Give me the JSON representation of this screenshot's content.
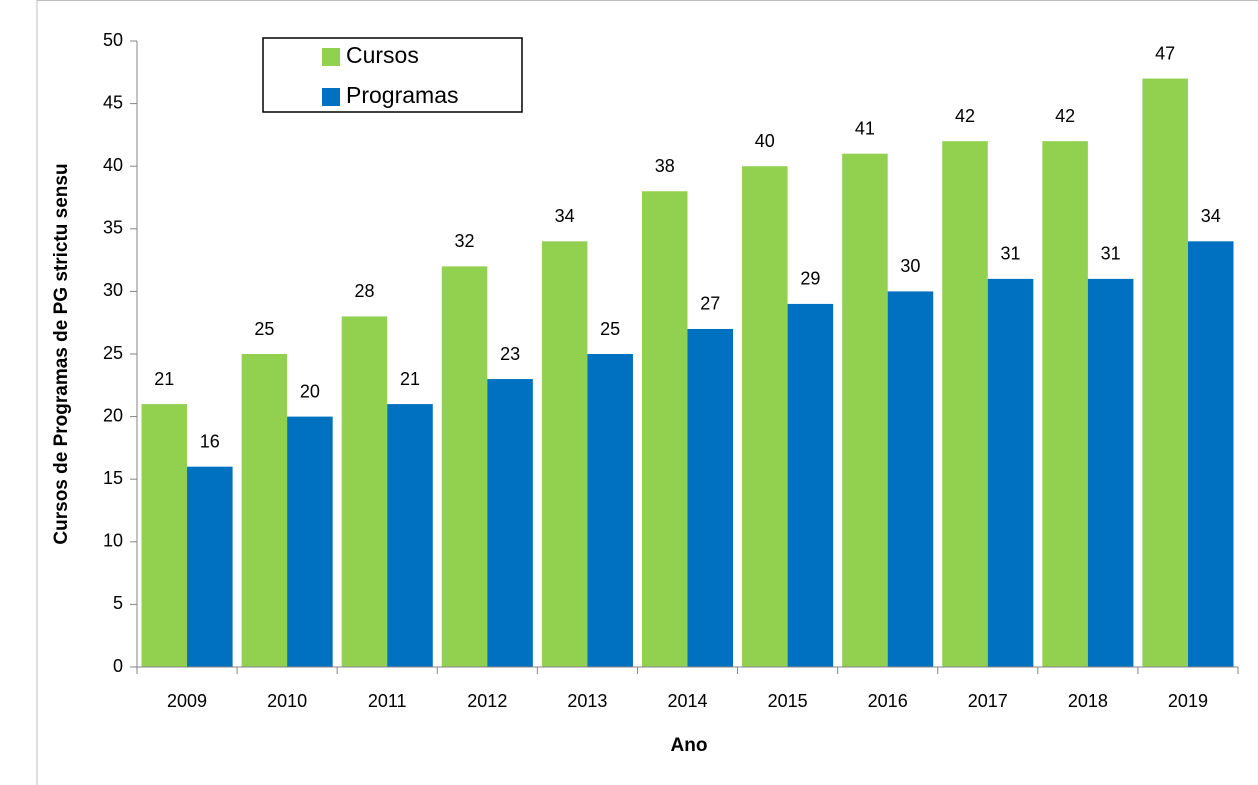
{
  "chart_data": {
    "type": "bar",
    "y_label": "Cursos de Programas de PG strictu sensu",
    "x_label": "Ano",
    "categories": [
      "2009",
      "2010",
      "2011",
      "2012",
      "2013",
      "2014",
      "2015",
      "2016",
      "2017",
      "2018",
      "2019"
    ],
    "series": [
      {
        "name": "Cursos",
        "color": "#92d050",
        "values": [
          21,
          25,
          28,
          32,
          34,
          38,
          40,
          41,
          42,
          42,
          47
        ]
      },
      {
        "name": "Programas",
        "color": "#0070c0",
        "values": [
          16,
          20,
          21,
          23,
          25,
          27,
          29,
          30,
          31,
          31,
          34
        ]
      }
    ],
    "ylim": [
      0,
      50
    ],
    "yticks": [
      0,
      5,
      10,
      15,
      20,
      25,
      30,
      35,
      40,
      45,
      50
    ],
    "grid": false,
    "legend": "upper left"
  }
}
